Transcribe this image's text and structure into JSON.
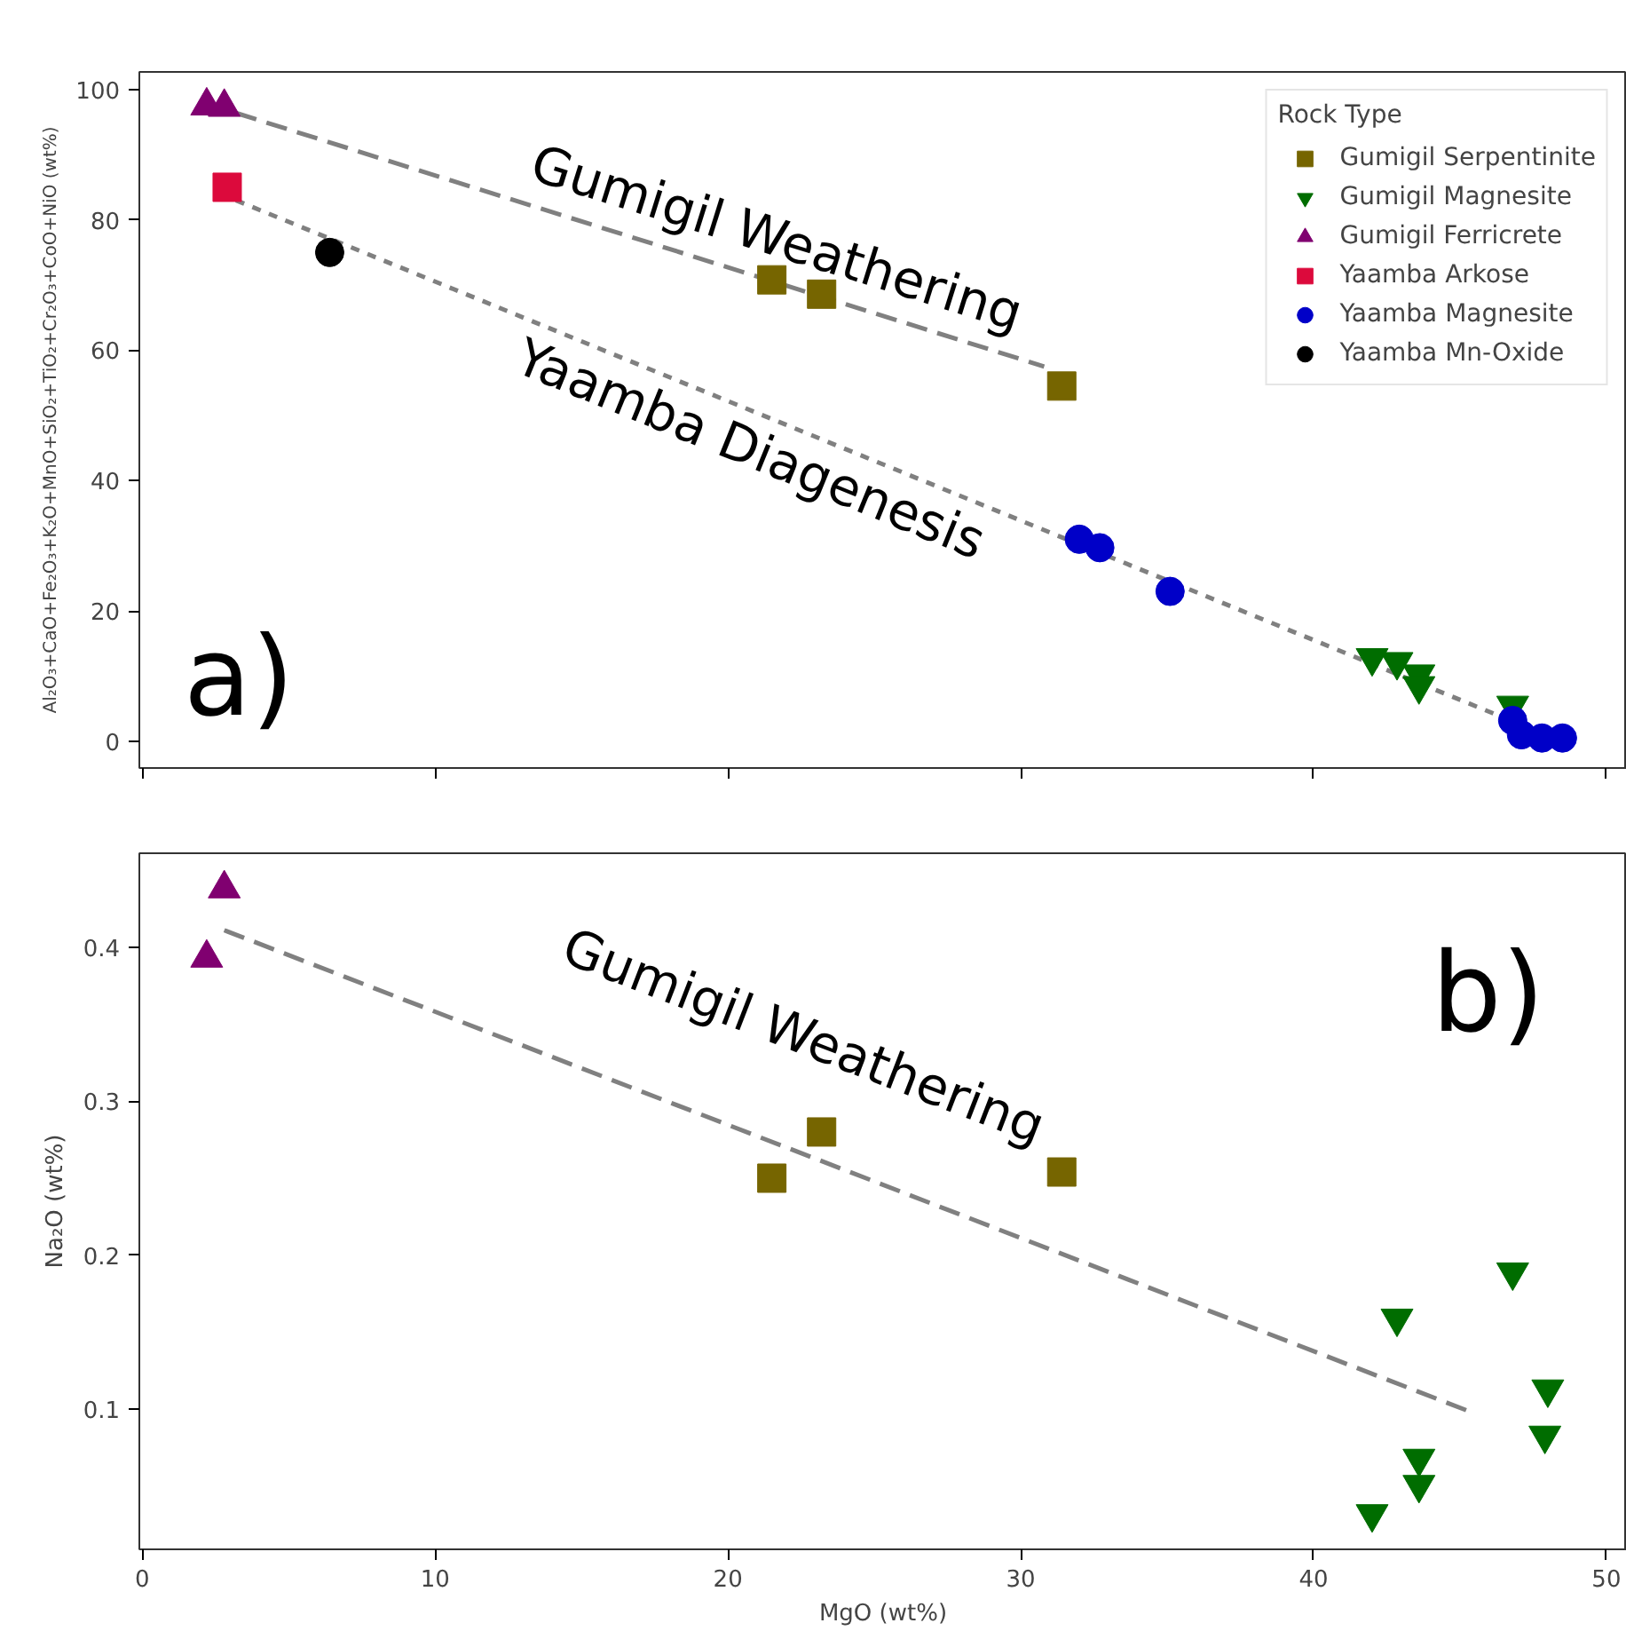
{
  "chart_data": [
    {
      "type": "scatter",
      "ylabel": "Al₂O₃+CaO+Fe₂O₃+K₂O+MnO+SiO₂+TiO₂+Cr₂O₃+CoO+NiO (wt%)",
      "legend_title": "Rock Type",
      "legend": "top right",
      "tick_labels": "y",
      "xlim": [
        -0.1,
        50.7
      ],
      "xticks": [
        0,
        10,
        20,
        30,
        40,
        50
      ],
      "ylim": [
        -4.1,
        102.7
      ],
      "yticks": [
        0,
        20,
        40,
        60,
        80,
        100
      ],
      "annotations": [
        "Gumigil Weathering",
        "Yaamba Diagenesis",
        "a)"
      ],
      "series": [
        {
          "type": "line",
          "color": "#808080",
          "line_style": "dashed",
          "x": [
            3.2,
            30.8
          ],
          "values": [
            96.4,
            57.5
          ]
        },
        {
          "type": "line",
          "color": "#808080",
          "line_style": "dotted",
          "x": [
            3.2,
            47.0
          ],
          "values": [
            83,
            2.7
          ]
        },
        {
          "name": "Gumigil Serpentinite",
          "color": "#766500",
          "marker": "square",
          "x": [
            21.5,
            23.2,
            31.4
          ],
          "values": [
            70.8,
            68.6,
            54.5
          ]
        },
        {
          "name": "Gumigil Magnesite",
          "color": "#006d00",
          "marker": "triangle_down",
          "x": [
            42.0,
            42.85,
            43.6,
            43.6,
            46.8
          ],
          "values": [
            12.8,
            12.2,
            10.3,
            8.5,
            5.5
          ]
        },
        {
          "name": "Gumigil Ferricrete",
          "color": "#800070",
          "marker": "triangle",
          "x": [
            2.2,
            2.8
          ],
          "values": [
            97.5,
            97.3
          ]
        },
        {
          "name": "Yaamba Arkose",
          "color": "#dc0a3c",
          "marker": "square",
          "x": [
            2.9
          ],
          "values": [
            85
          ]
        },
        {
          "name": "Yaamba Magnesite",
          "color": "#0000c8",
          "marker": "circle",
          "x": [
            32.0,
            32.7,
            35.1,
            46.8,
            47.1,
            47.8,
            48.5
          ],
          "values": [
            31,
            29.7,
            23,
            3.2,
            1.0,
            0.5,
            0.5
          ]
        },
        {
          "name": "Yaamba Mn-Oxide",
          "color": "#000000",
          "marker": "circle",
          "x": [
            6.4
          ],
          "values": [
            75
          ]
        }
      ]
    },
    {
      "type": "scatter",
      "xlabel": "MgO (wt%)",
      "ylabel": "Na₂O (wt%)",
      "xlim": [
        -0.1,
        50.7
      ],
      "xticks": [
        0,
        10,
        20,
        30,
        40,
        50
      ],
      "ylim": [
        0.009,
        0.461
      ],
      "yticks": [
        0.1,
        0.2,
        0.3,
        0.4
      ],
      "annotations": [
        "Gumigil Weathering",
        "b)"
      ],
      "series": [
        {
          "type": "line",
          "color": "#808080",
          "line_style": "dashed",
          "x": [
            2.8,
            45.4
          ],
          "values": [
            0.411,
            0.098
          ]
        },
        {
          "color": "#766500",
          "marker": "square",
          "x": [
            21.5,
            23.2,
            31.4
          ],
          "values": [
            0.25,
            0.28,
            0.254
          ]
        },
        {
          "color": "#006d00",
          "marker": "triangle_down",
          "x": [
            42.0,
            42.85,
            43.6,
            43.6,
            46.8,
            48.0,
            47.9
          ],
          "values": [
            0.032,
            0.159,
            0.068,
            0.051,
            0.189,
            0.113,
            0.083
          ]
        },
        {
          "color": "#800070",
          "marker": "triangle",
          "x": [
            2.2,
            2.8
          ],
          "values": [
            0.393,
            0.438
          ]
        }
      ]
    }
  ]
}
